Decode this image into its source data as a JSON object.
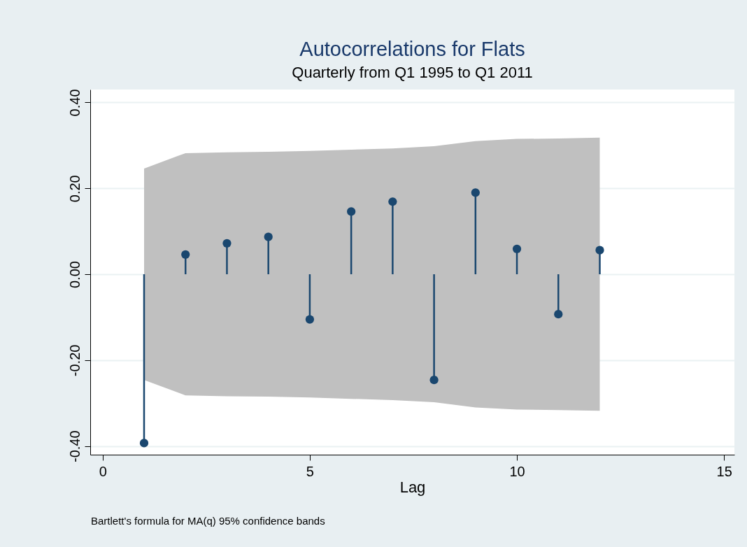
{
  "chart_data": {
    "type": "lollipop",
    "title": "Autocorrelations for Flats",
    "subtitle": "Quarterly from Q1 1995 to Q1 2011",
    "xlabel": "Lag",
    "annotations": [
      "Bartlett's formula for MA(q) 95% confidence bands"
    ],
    "series": [
      {
        "color": "#1a476f",
        "x": [
          1,
          2,
          3,
          4,
          5,
          6,
          7,
          8,
          9,
          10,
          11,
          12
        ],
        "values": [
          -0.393,
          0.046,
          0.072,
          0.087,
          -0.105,
          0.146,
          0.169,
          -0.246,
          0.19,
          0.059,
          -0.093,
          0.056
        ],
        "lower": [
          -0.246,
          -0.282,
          -0.284,
          -0.285,
          -0.287,
          -0.29,
          -0.293,
          -0.298,
          -0.31,
          -0.315,
          -0.316,
          -0.318
        ],
        "upper": [
          0.246,
          0.282,
          0.284,
          0.285,
          0.287,
          0.29,
          0.293,
          0.298,
          0.31,
          0.315,
          0.316,
          0.318
        ]
      }
    ],
    "xlim": [
      -0.3,
      15.25
    ],
    "xticks": [
      0,
      5,
      10,
      15
    ],
    "ylim": [
      -0.42,
      0.43
    ],
    "yticks": [
      {
        "value": -0.4,
        "label": "-0.40"
      },
      {
        "value": -0.2,
        "label": "-0.20"
      },
      {
        "value": 0,
        "label": "0.00"
      },
      {
        "value": 0.2,
        "label": "0.20"
      },
      {
        "value": 0.4,
        "label": "0.40"
      }
    ],
    "grid": "y",
    "marker": "circle"
  }
}
